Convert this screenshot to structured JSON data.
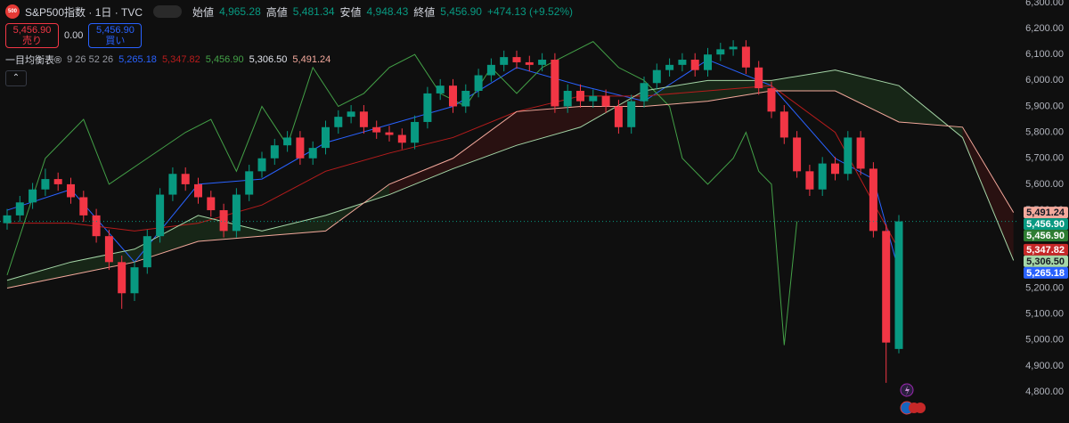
{
  "header": {
    "logo": "500",
    "symbol": "S&P500指数 · 1日 · TVC",
    "fields": [
      {
        "name": "始値",
        "value": "4,965.28"
      },
      {
        "name": "高値",
        "value": "5,481.34"
      },
      {
        "name": "安値",
        "value": "4,948.43"
      },
      {
        "name": "終値",
        "value": "5,456.90"
      }
    ],
    "change": "+474.13 (+9.52%)"
  },
  "trade_panel": {
    "sell_price": "5,456.90",
    "sell": "売り",
    "spread": "0.00",
    "buy_price": "5,456.90",
    "buy": "買い"
  },
  "indicator": {
    "name": "一目均衡表®",
    "params": "9 26 52 26"
  },
  "chart_data": {
    "type": "candlestick",
    "categories": [
      null,
      null,
      null,
      null,
      null,
      null,
      null,
      null,
      null,
      null,
      null,
      null,
      null,
      null,
      null,
      null,
      null,
      null,
      null,
      null,
      null,
      null,
      null,
      null,
      null,
      null,
      null,
      null,
      null,
      null,
      null,
      null,
      null,
      null,
      null,
      null,
      null,
      null,
      null,
      null,
      null,
      null,
      null,
      null,
      null,
      null,
      null,
      null,
      null,
      null,
      null,
      null,
      null,
      null,
      null,
      null,
      null,
      null,
      null,
      null,
      null,
      null,
      null,
      null,
      null,
      null,
      null,
      null,
      null,
      null,
      null
    ],
    "candles": {
      "up_color": "#089981",
      "down_color": "#f23645",
      "open": [
        5450,
        5480,
        5530,
        5580,
        5620,
        5600,
        5550,
        5480,
        5400,
        5300,
        5180,
        5280,
        5400,
        5560,
        5640,
        5600,
        5550,
        5500,
        5420,
        5560,
        5650,
        5700,
        5750,
        5780,
        5700,
        5740,
        5820,
        5860,
        5880,
        5820,
        5800,
        5790,
        5760,
        5840,
        5950,
        5980,
        5900,
        5960,
        6020,
        6060,
        6090,
        6070,
        6060,
        6080,
        5900,
        5960,
        5920,
        5940,
        5900,
        5820,
        5920,
        5990,
        6040,
        6060,
        6080,
        6040,
        6100,
        6120,
        6130,
        6050,
        5970,
        5880,
        5780,
        5650,
        5580,
        5680,
        5640,
        5780,
        5660,
        5420,
        4965.28
      ],
      "high": [
        5505,
        5555,
        5605,
        5660,
        5645,
        5625,
        5575,
        5505,
        5425,
        5325,
        5305,
        5425,
        5585,
        5665,
        5665,
        5625,
        5575,
        5525,
        5585,
        5675,
        5725,
        5775,
        5805,
        5805,
        5765,
        5845,
        5885,
        5905,
        5905,
        5845,
        5825,
        5815,
        5865,
        5975,
        6005,
        6005,
        5985,
        6045,
        6085,
        6115,
        6115,
        6095,
        6105,
        6105,
        5985,
        5985,
        5965,
        5965,
        5925,
        5945,
        6015,
        6065,
        6085,
        6105,
        6105,
        6125,
        6145,
        6155,
        6155,
        6075,
        5995,
        5905,
        5805,
        5675,
        5705,
        5705,
        5805,
        5805,
        5685,
        5445,
        5481.34
      ],
      "low": [
        5425,
        5455,
        5505,
        5555,
        5575,
        5525,
        5455,
        5375,
        5270,
        5120,
        5150,
        5255,
        5375,
        5535,
        5575,
        5525,
        5475,
        5395,
        5395,
        5535,
        5625,
        5675,
        5725,
        5675,
        5675,
        5715,
        5795,
        5835,
        5795,
        5775,
        5765,
        5735,
        5735,
        5815,
        5925,
        5875,
        5875,
        5935,
        5995,
        6035,
        6045,
        6035,
        6035,
        5875,
        5875,
        5895,
        5895,
        5875,
        5795,
        5795,
        5895,
        5965,
        6015,
        6035,
        6015,
        6015,
        6075,
        6095,
        6025,
        5945,
        5855,
        5755,
        5625,
        5555,
        5555,
        5615,
        5615,
        5635,
        5395,
        4835,
        4948.43
      ],
      "close": [
        5480,
        5530,
        5580,
        5620,
        5600,
        5550,
        5480,
        5400,
        5300,
        5180,
        5280,
        5400,
        5560,
        5640,
        5600,
        5550,
        5500,
        5420,
        5560,
        5650,
        5700,
        5750,
        5780,
        5700,
        5740,
        5820,
        5860,
        5880,
        5820,
        5800,
        5790,
        5760,
        5840,
        5950,
        5980,
        5900,
        5960,
        6020,
        6060,
        6090,
        6070,
        6060,
        6080,
        5900,
        5960,
        5920,
        5940,
        5900,
        5820,
        5920,
        5990,
        6040,
        6060,
        6080,
        6040,
        6100,
        6120,
        6130,
        6050,
        5970,
        5880,
        5780,
        5650,
        5580,
        5680,
        5640,
        5780,
        5660,
        5420,
        4990,
        5456.9
      ]
    },
    "lines": [
      {
        "color": "#2962ff",
        "x": [
          0,
          5,
          10,
          15,
          20,
          25,
          30,
          35,
          40,
          45,
          50,
          55,
          60,
          65,
          68,
          70
        ],
        "values": [
          5500,
          5580,
          5300,
          5600,
          5620,
          5760,
          5830,
          5900,
          6050,
          5980,
          5920,
          6080,
          5980,
          5700,
          5620,
          5265.18
        ],
        "value_labels": [
          null,
          null,
          null,
          null,
          null,
          null,
          null,
          null,
          null,
          null,
          null,
          null,
          null,
          null,
          null,
          "5,265.18"
        ]
      },
      {
        "color": "#b71c1c",
        "x": [
          0,
          5,
          10,
          15,
          20,
          25,
          30,
          35,
          40,
          45,
          50,
          55,
          60,
          65,
          70
        ],
        "values": [
          5450,
          5450,
          5420,
          5450,
          5520,
          5650,
          5720,
          5780,
          5880,
          5940,
          5940,
          5960,
          5980,
          5800,
          5347.82
        ],
        "value_labels": [
          null,
          null,
          null,
          null,
          null,
          null,
          null,
          null,
          null,
          null,
          null,
          null,
          null,
          null,
          "5,347.82"
        ]
      },
      {
        "color": "#43a047",
        "x": [
          0,
          3,
          6,
          8,
          11,
          14,
          16,
          18,
          20,
          22,
          24,
          26,
          28,
          30,
          32,
          34,
          36,
          38,
          40,
          42,
          44,
          46,
          48,
          50,
          52,
          53,
          55,
          57,
          58,
          59,
          60,
          61,
          62
        ],
        "values": [
          5250,
          5700,
          5850,
          5600,
          5700,
          5800,
          5850,
          5650,
          5900,
          5750,
          6050,
          5900,
          5950,
          6050,
          6100,
          5950,
          5900,
          6050,
          5950,
          6050,
          6100,
          6150,
          6050,
          6000,
          5900,
          5700,
          5600,
          5700,
          5800,
          5650,
          5600,
          4980,
          5456.9
        ],
        "value_labels": [
          null,
          null,
          null,
          null,
          null,
          null,
          null,
          null,
          null,
          null,
          null,
          null,
          null,
          null,
          null,
          null,
          null,
          null,
          null,
          null,
          null,
          null,
          null,
          null,
          null,
          null,
          null,
          null,
          null,
          null,
          null,
          null,
          "5,456.90"
        ]
      },
      {
        "color": "#a5d6a7",
        "x": [
          0,
          5,
          10,
          15,
          20,
          25,
          30,
          35,
          40,
          45,
          50,
          55,
          60,
          65,
          70,
          75,
          79
        ],
        "values": [
          5230,
          5300,
          5350,
          5480,
          5420,
          5480,
          5560,
          5660,
          5750,
          5820,
          5960,
          6000,
          6000,
          6040,
          5980,
          5780,
          5306.5
        ],
        "value_labels": [
          null,
          null,
          null,
          null,
          null,
          null,
          null,
          null,
          null,
          null,
          null,
          null,
          null,
          null,
          null,
          null,
          "5,306.50"
        ]
      },
      {
        "color": "#f4a99c",
        "x": [
          0,
          5,
          10,
          15,
          20,
          25,
          30,
          35,
          40,
          45,
          50,
          55,
          60,
          65,
          70,
          75,
          79
        ],
        "values": [
          5200,
          5250,
          5300,
          5380,
          5400,
          5420,
          5600,
          5700,
          5880,
          5900,
          5900,
          5920,
          5960,
          5960,
          5840,
          5820,
          5491.24
        ],
        "value_labels": [
          null,
          null,
          null,
          null,
          null,
          null,
          null,
          null,
          null,
          null,
          null,
          null,
          null,
          null,
          null,
          null,
          "5,491.24"
        ]
      }
    ],
    "cloud_colors": {
      "up": "rgba(67,160,71,0.16)",
      "down": "rgba(183,28,28,0.16)"
    },
    "ylim": [
      4680,
      6310
    ],
    "yticks": [
      {
        "value": 4800,
        "label": "4,800.00"
      },
      {
        "value": 4900,
        "label": "4,900.00"
      },
      {
        "value": 5000,
        "label": "5,000.00"
      },
      {
        "value": 5100,
        "label": "5,100.00"
      },
      {
        "value": 5200,
        "label": "5,200.00"
      },
      {
        "value": 5300,
        "label": "5,300.00"
      },
      {
        "value": 5400,
        "label": "5,400.00"
      },
      {
        "value": 5500,
        "label": "5,500.00"
      },
      {
        "value": 5600,
        "label": "5,600.00"
      },
      {
        "value": 5700,
        "label": "5,700.00"
      },
      {
        "value": 5800,
        "label": "5,800.00"
      },
      {
        "value": 5900,
        "label": "5,900.00"
      },
      {
        "value": 6000,
        "label": "6,000.00"
      },
      {
        "value": 6100,
        "label": "6,100.00"
      },
      {
        "value": 6200,
        "label": "6,200.00"
      },
      {
        "value": 6300,
        "label": "6,300.00"
      }
    ],
    "grid": false
  }
}
